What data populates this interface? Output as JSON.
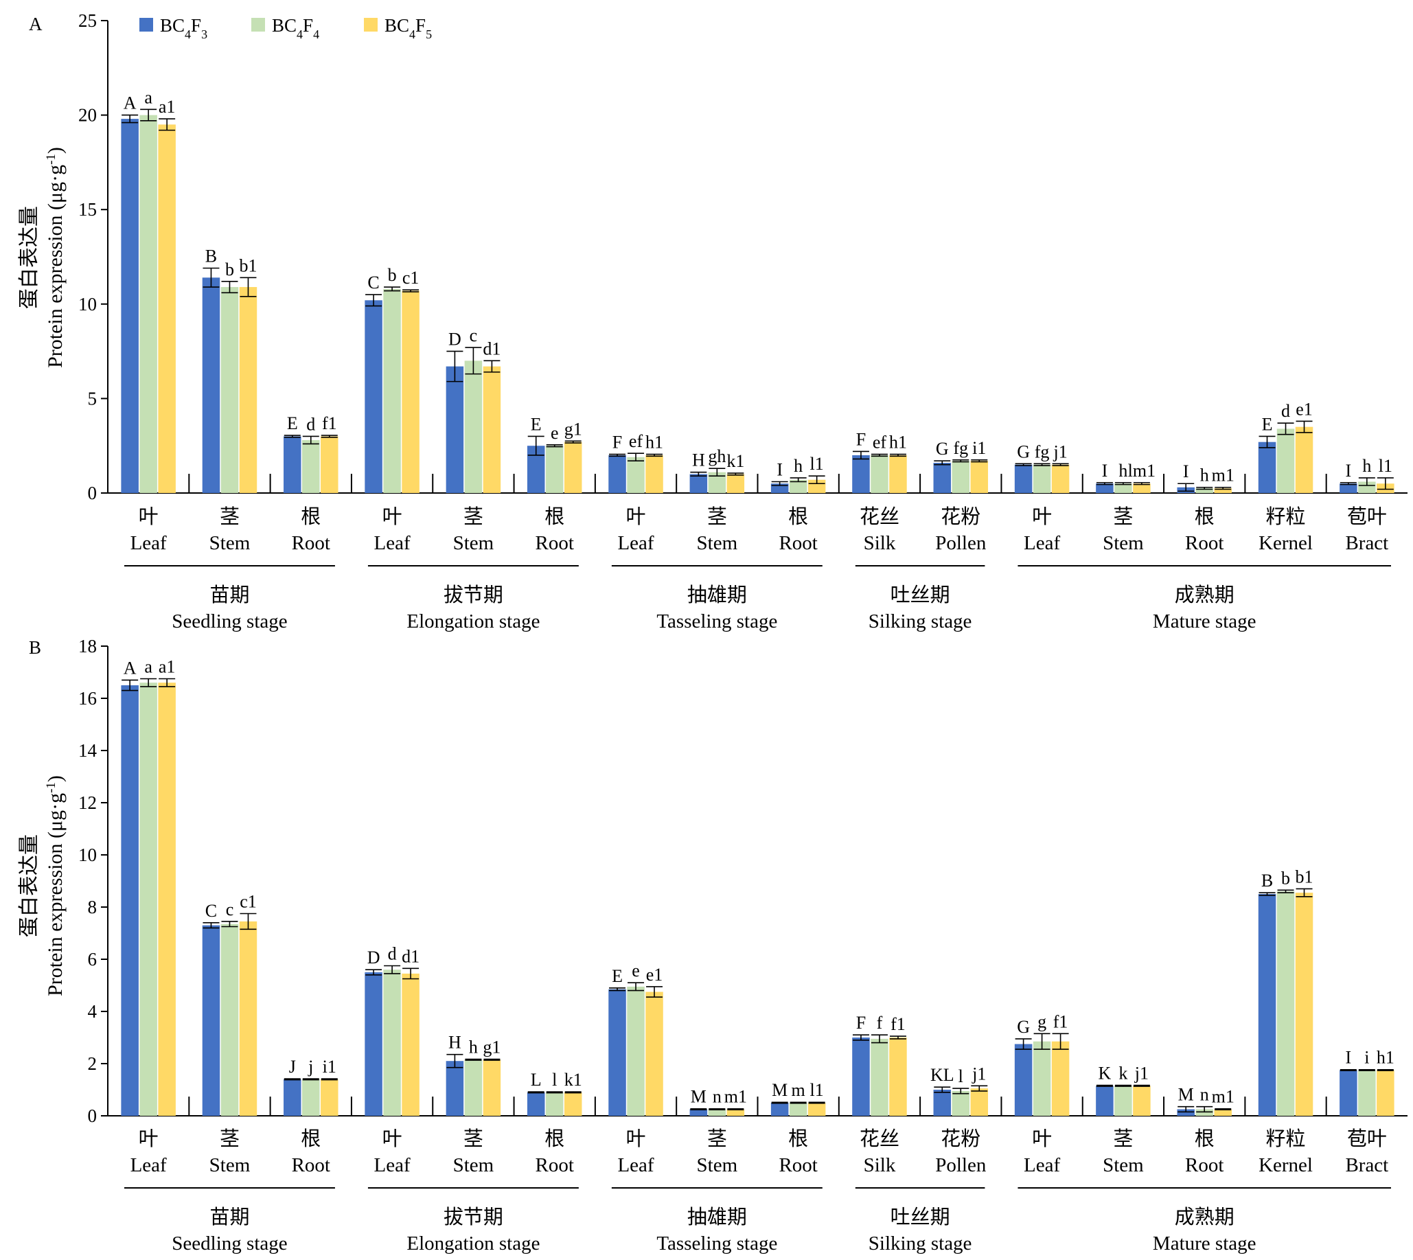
{
  "series": [
    {
      "name": "BC4F3",
      "base": "BC",
      "sub1": "4",
      "mid": "F",
      "sub2": "3",
      "color": "#4472C4"
    },
    {
      "name": "BC4F4",
      "base": "BC",
      "sub1": "4",
      "mid": "F",
      "sub2": "4",
      "color": "#C5E0B4"
    },
    {
      "name": "BC4F5",
      "base": "BC",
      "sub1": "4",
      "mid": "F",
      "sub2": "5",
      "color": "#FFD966"
    }
  ],
  "categories": [
    {
      "cn": "叶",
      "en": "Leaf"
    },
    {
      "cn": "茎",
      "en": "Stem"
    },
    {
      "cn": "根",
      "en": "Root"
    },
    {
      "cn": "叶",
      "en": "Leaf"
    },
    {
      "cn": "茎",
      "en": "Stem"
    },
    {
      "cn": "根",
      "en": "Root"
    },
    {
      "cn": "叶",
      "en": "Leaf"
    },
    {
      "cn": "茎",
      "en": "Stem"
    },
    {
      "cn": "根",
      "en": "Root"
    },
    {
      "cn": "花丝",
      "en": "Silk"
    },
    {
      "cn": "花粉",
      "en": "Pollen"
    },
    {
      "cn": "叶",
      "en": "Leaf"
    },
    {
      "cn": "茎",
      "en": "Stem"
    },
    {
      "cn": "根",
      "en": "Root"
    },
    {
      "cn": "籽粒",
      "en": "Kernel"
    },
    {
      "cn": "苞叶",
      "en": "Bract"
    }
  ],
  "stages": [
    {
      "cn": "苗期",
      "en": "Seedling stage",
      "start": 0,
      "end": 2
    },
    {
      "cn": "拔节期",
      "en": "Elongation stage",
      "start": 3,
      "end": 5
    },
    {
      "cn": "抽雄期",
      "en": "Tasseling stage",
      "start": 6,
      "end": 8
    },
    {
      "cn": "吐丝期",
      "en": "Silking stage",
      "start": 9,
      "end": 10
    },
    {
      "cn": "成熟期",
      "en": "Mature stage",
      "start": 11,
      "end": 15
    }
  ],
  "ylabel_cn": "蛋白表达量",
  "ylabel_en": "Protein expression (μg·g",
  "ylabel_sup": "-1",
  "ylabel_close": ")",
  "chart_data": [
    {
      "type": "bar",
      "panel": "A",
      "ylim": [
        0,
        25
      ],
      "yticks": [
        0,
        5,
        10,
        15,
        20,
        25
      ],
      "grid": false,
      "legend": "top-left",
      "series": [
        {
          "name": "BC4F3",
          "values": [
            19.8,
            11.4,
            3.0,
            10.2,
            6.7,
            2.5,
            2.0,
            1.0,
            0.5,
            2.0,
            1.6,
            1.5,
            0.5,
            0.3,
            2.7,
            0.5
          ],
          "errors": [
            0.2,
            0.5,
            0.05,
            0.3,
            0.8,
            0.5,
            0.05,
            0.1,
            0.1,
            0.2,
            0.1,
            0.05,
            0.05,
            0.2,
            0.3,
            0.05
          ],
          "labels": [
            "A",
            "B",
            "E",
            "C",
            "D",
            "E",
            "F",
            "H",
            "I",
            "F",
            "G",
            "G",
            "I",
            "I",
            "E",
            "I"
          ]
        },
        {
          "name": "BC4F4",
          "values": [
            20.0,
            10.9,
            2.8,
            10.8,
            7.0,
            2.5,
            1.9,
            1.1,
            0.7,
            2.0,
            1.7,
            1.5,
            0.5,
            0.25,
            3.4,
            0.6
          ],
          "errors": [
            0.3,
            0.3,
            0.2,
            0.1,
            0.7,
            0.05,
            0.2,
            0.2,
            0.1,
            0.05,
            0.05,
            0.05,
            0.05,
            0.05,
            0.3,
            0.2
          ],
          "labels": [
            "a",
            "b",
            "d",
            "b",
            "c",
            "e",
            "ef",
            "gh",
            "h",
            "ef",
            "fg",
            "fg",
            "h",
            "h",
            "d",
            "h"
          ]
        },
        {
          "name": "BC4F5",
          "values": [
            19.5,
            10.9,
            3.0,
            10.7,
            6.7,
            2.7,
            2.0,
            1.0,
            0.7,
            2.0,
            1.7,
            1.5,
            0.5,
            0.25,
            3.5,
            0.5
          ],
          "errors": [
            0.3,
            0.5,
            0.05,
            0.05,
            0.3,
            0.05,
            0.05,
            0.05,
            0.2,
            0.05,
            0.05,
            0.05,
            0.05,
            0.05,
            0.3,
            0.3
          ],
          "labels": [
            "a1",
            "b1",
            "f1",
            "c1",
            "d1",
            "g1",
            "h1",
            "k1",
            "l1",
            "h1",
            "i1",
            "j1",
            "lm1",
            "m1",
            "e1",
            "l1"
          ]
        }
      ]
    },
    {
      "type": "bar",
      "panel": "B",
      "ylim": [
        0,
        18
      ],
      "yticks": [
        0,
        2,
        4,
        6,
        8,
        10,
        12,
        14,
        16,
        18
      ],
      "grid": false,
      "series": [
        {
          "name": "BC4F3",
          "values": [
            16.5,
            7.3,
            1.4,
            5.5,
            2.1,
            0.9,
            4.85,
            0.25,
            0.5,
            3.0,
            1.0,
            2.75,
            1.15,
            0.25,
            8.5,
            1.75
          ],
          "errors": [
            0.2,
            0.1,
            0.02,
            0.1,
            0.25,
            0.02,
            0.05,
            0.02,
            0.02,
            0.1,
            0.1,
            0.2,
            0.02,
            0.1,
            0.05,
            0.02
          ],
          "labels": [
            "A",
            "C",
            "J",
            "D",
            "H",
            "L",
            "E",
            "M",
            "M",
            "F",
            "KL",
            "G",
            "K",
            "M",
            "B",
            "I"
          ]
        },
        {
          "name": "BC4F4",
          "values": [
            16.6,
            7.35,
            1.4,
            5.6,
            2.15,
            0.9,
            4.95,
            0.25,
            0.5,
            2.95,
            0.95,
            2.85,
            1.15,
            0.25,
            8.6,
            1.75
          ],
          "errors": [
            0.15,
            0.1,
            0.02,
            0.15,
            0.02,
            0.02,
            0.15,
            0.02,
            0.02,
            0.15,
            0.1,
            0.3,
            0.02,
            0.1,
            0.05,
            0.02
          ],
          "labels": [
            "a",
            "c",
            "j",
            "d",
            "h",
            "l",
            "e",
            "n",
            "m",
            "f",
            "l",
            "g",
            "k",
            "n",
            "b",
            "i"
          ]
        },
        {
          "name": "BC4F5",
          "values": [
            16.6,
            7.45,
            1.4,
            5.45,
            2.15,
            0.9,
            4.75,
            0.25,
            0.5,
            3.0,
            1.05,
            2.85,
            1.15,
            0.25,
            8.55,
            1.75
          ],
          "errors": [
            0.15,
            0.3,
            0.02,
            0.2,
            0.02,
            0.02,
            0.2,
            0.02,
            0.02,
            0.05,
            0.1,
            0.3,
            0.02,
            0.02,
            0.15,
            0.02
          ],
          "labels": [
            "a1",
            "c1",
            "i1",
            "d1",
            "g1",
            "k1",
            "e1",
            "m1",
            "l1",
            "f1",
            "j1",
            "f1",
            "j1",
            "m1",
            "b1",
            "h1"
          ]
        }
      ]
    }
  ]
}
